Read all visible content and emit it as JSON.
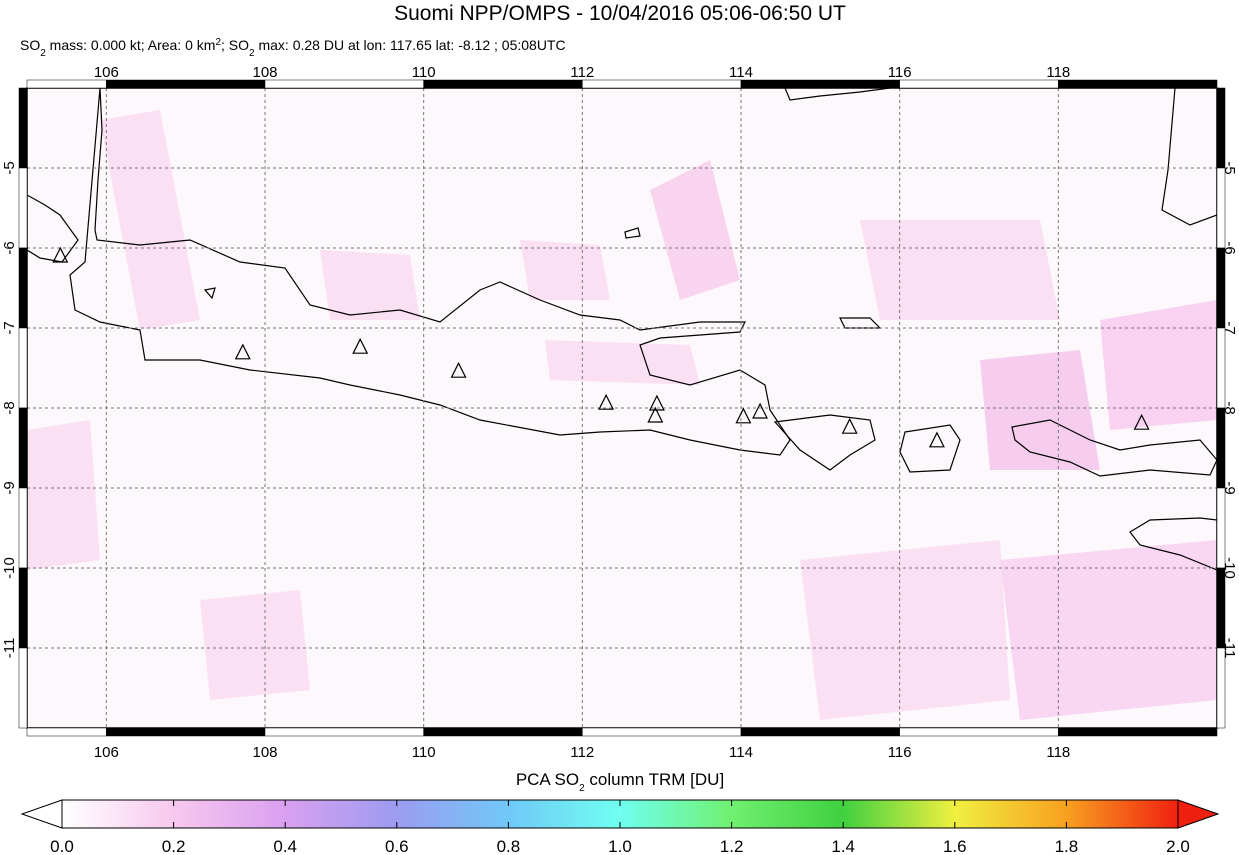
{
  "chart_data": {
    "type": "map",
    "title": "Suomi NPP/OMPS - 10/04/2016 05:06-06:50 UT",
    "subtitle": [
      {
        "text": "SO"
      },
      {
        "text": "2",
        "style": "sub"
      },
      {
        "text": " mass: 0.000 kt; Area: 0 km"
      },
      {
        "text": "2",
        "style": "super"
      },
      {
        "text": "; SO"
      },
      {
        "text": "2",
        "style": "sub"
      },
      {
        "text": " max: 0.28 DU at lon: 117.65 lat: -8.12 ; 05:08UTC"
      }
    ],
    "xlim": [
      105,
      120
    ],
    "ylim": [
      -12,
      -4
    ],
    "xticks": [
      106,
      108,
      110,
      112,
      114,
      116,
      118
    ],
    "yticks": [
      -5,
      -6,
      -7,
      -8,
      -9,
      -10,
      -11
    ],
    "grid": true,
    "volcanoes": {
      "lon": [
        105.42,
        107.72,
        109.2,
        110.44,
        112.3,
        112.94,
        112.92,
        114.03,
        114.24,
        115.37,
        116.47,
        119.05
      ],
      "lat": [
        -6.1,
        -7.31,
        -7.24,
        -7.54,
        -7.94,
        -7.95,
        -8.1,
        -8.11,
        -8.05,
        -8.24,
        -8.41,
        -8.19
      ]
    },
    "colorbar": {
      "label": [
        {
          "text": "PCA SO"
        },
        {
          "text": "2",
          "style": "sub"
        },
        {
          "text": " column TRM [DU]"
        }
      ],
      "lim": [
        0,
        2
      ],
      "ticks": [
        {
          "value": 0,
          "label": "0.0"
        },
        {
          "value": 0.2,
          "label": "0.2"
        },
        {
          "value": 0.4,
          "label": "0.4"
        },
        {
          "value": 0.6,
          "label": "0.6"
        },
        {
          "value": 0.8,
          "label": "0.8"
        },
        {
          "value": 1,
          "label": "1.0"
        },
        {
          "value": 1.2,
          "label": "1.2"
        },
        {
          "value": 1.4,
          "label": "1.4"
        },
        {
          "value": 1.6,
          "label": "1.6"
        },
        {
          "value": 1.8,
          "label": "1.8"
        },
        {
          "value": 2,
          "label": "2.0"
        }
      ],
      "colors": [
        "#ffffff",
        "#f7c8ee",
        "#d9a0f0",
        "#9c9cf0",
        "#70c8f8",
        "#70fff0",
        "#70f070",
        "#40d040",
        "#f0f040",
        "#f8a020",
        "#f02010"
      ]
    }
  }
}
